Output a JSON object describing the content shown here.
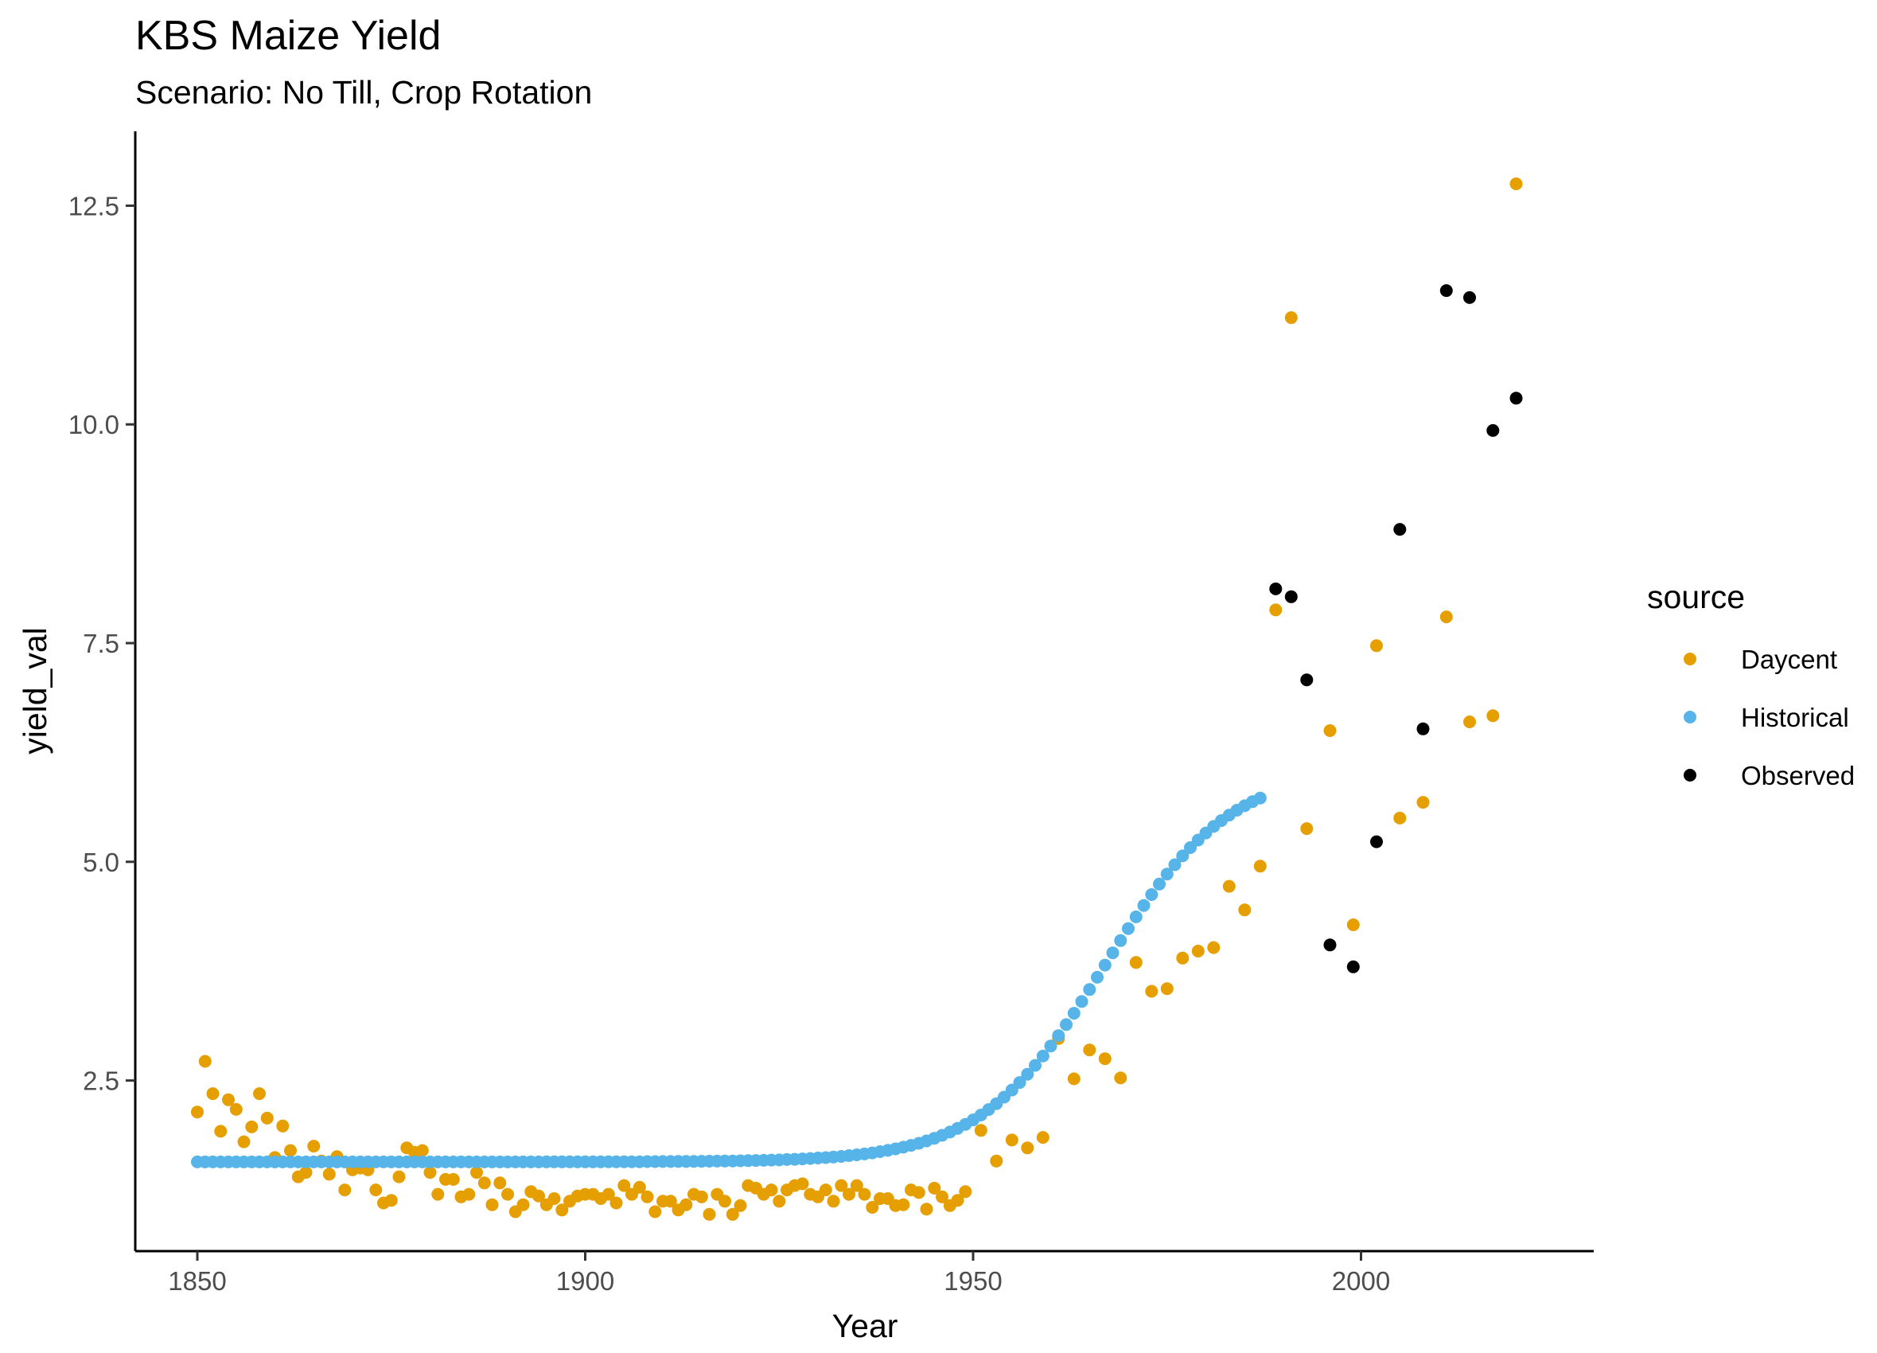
{
  "chart_data": {
    "type": "scatter",
    "title": "KBS Maize Yield",
    "subtitle": "Scenario: No Till, Crop Rotation",
    "xlabel": "Year",
    "ylabel": "yield_val",
    "xlim": [
      1842,
      2030
    ],
    "ylim": [
      0.55,
      13.35
    ],
    "x_ticks": [
      1850,
      1900,
      1950,
      2000
    ],
    "y_ticks": [
      2.5,
      5.0,
      7.5,
      10.0,
      12.5
    ],
    "grid": false,
    "legend": {
      "title": "source",
      "position": "right"
    },
    "series": [
      {
        "name": "Daycent",
        "color": "#E69F00",
        "points": [
          [
            1850,
            2.14
          ],
          [
            1851,
            2.72
          ],
          [
            1852,
            2.35
          ],
          [
            1853,
            1.92
          ],
          [
            1854,
            2.28
          ],
          [
            1855,
            2.17
          ],
          [
            1856,
            1.8
          ],
          [
            1857,
            1.97
          ],
          [
            1858,
            2.35
          ],
          [
            1859,
            2.07
          ],
          [
            1860,
            1.62
          ],
          [
            1861,
            1.98
          ],
          [
            1862,
            1.7
          ],
          [
            1863,
            1.4
          ],
          [
            1864,
            1.45
          ],
          [
            1865,
            1.75
          ],
          [
            1866,
            1.58
          ],
          [
            1867,
            1.43
          ],
          [
            1868,
            1.63
          ],
          [
            1869,
            1.25
          ],
          [
            1870,
            1.48
          ],
          [
            1871,
            1.5
          ],
          [
            1872,
            1.48
          ],
          [
            1873,
            1.25
          ],
          [
            1874,
            1.1
          ],
          [
            1875,
            1.13
          ],
          [
            1876,
            1.4
          ],
          [
            1877,
            1.73
          ],
          [
            1878,
            1.68
          ],
          [
            1879,
            1.7
          ],
          [
            1880,
            1.45
          ],
          [
            1881,
            1.2
          ],
          [
            1882,
            1.37
          ],
          [
            1883,
            1.37
          ],
          [
            1884,
            1.17
          ],
          [
            1885,
            1.2
          ],
          [
            1886,
            1.45
          ],
          [
            1887,
            1.33
          ],
          [
            1888,
            1.08
          ],
          [
            1889,
            1.33
          ],
          [
            1890,
            1.2
          ],
          [
            1891,
            1.0
          ],
          [
            1892,
            1.08
          ],
          [
            1893,
            1.23
          ],
          [
            1894,
            1.18
          ],
          [
            1895,
            1.08
          ],
          [
            1896,
            1.15
          ],
          [
            1897,
            1.02
          ],
          [
            1898,
            1.12
          ],
          [
            1899,
            1.18
          ],
          [
            1900,
            1.2
          ],
          [
            1901,
            1.2
          ],
          [
            1902,
            1.15
          ],
          [
            1903,
            1.2
          ],
          [
            1904,
            1.1
          ],
          [
            1905,
            1.3
          ],
          [
            1906,
            1.2
          ],
          [
            1907,
            1.28
          ],
          [
            1908,
            1.17
          ],
          [
            1909,
            1.0
          ],
          [
            1910,
            1.12
          ],
          [
            1911,
            1.12
          ],
          [
            1912,
            1.02
          ],
          [
            1913,
            1.08
          ],
          [
            1914,
            1.2
          ],
          [
            1915,
            1.17
          ],
          [
            1916,
            0.97
          ],
          [
            1917,
            1.2
          ],
          [
            1918,
            1.12
          ],
          [
            1919,
            0.97
          ],
          [
            1920,
            1.07
          ],
          [
            1921,
            1.3
          ],
          [
            1922,
            1.27
          ],
          [
            1923,
            1.2
          ],
          [
            1924,
            1.25
          ],
          [
            1925,
            1.12
          ],
          [
            1926,
            1.25
          ],
          [
            1927,
            1.3
          ],
          [
            1928,
            1.32
          ],
          [
            1929,
            1.2
          ],
          [
            1930,
            1.17
          ],
          [
            1931,
            1.25
          ],
          [
            1932,
            1.12
          ],
          [
            1933,
            1.3
          ],
          [
            1934,
            1.2
          ],
          [
            1935,
            1.3
          ],
          [
            1936,
            1.2
          ],
          [
            1937,
            1.05
          ],
          [
            1938,
            1.15
          ],
          [
            1939,
            1.15
          ],
          [
            1940,
            1.07
          ],
          [
            1941,
            1.08
          ],
          [
            1942,
            1.25
          ],
          [
            1943,
            1.22
          ],
          [
            1944,
            1.03
          ],
          [
            1945,
            1.27
          ],
          [
            1946,
            1.17
          ],
          [
            1947,
            1.07
          ],
          [
            1948,
            1.13
          ],
          [
            1949,
            1.23
          ],
          [
            1951,
            1.93
          ],
          [
            1953,
            1.58
          ],
          [
            1955,
            1.82
          ],
          [
            1957,
            1.73
          ],
          [
            1959,
            1.85
          ],
          [
            1961,
            2.98
          ],
          [
            1963,
            2.52
          ],
          [
            1965,
            2.85
          ],
          [
            1967,
            2.75
          ],
          [
            1969,
            2.53
          ],
          [
            1971,
            3.85
          ],
          [
            1973,
            3.52
          ],
          [
            1975,
            3.55
          ],
          [
            1977,
            3.9
          ],
          [
            1979,
            3.98
          ],
          [
            1981,
            4.02
          ],
          [
            1983,
            4.72
          ],
          [
            1985,
            4.45
          ],
          [
            1987,
            4.95
          ],
          [
            1989,
            7.88
          ],
          [
            1991,
            11.22
          ],
          [
            1993,
            5.38
          ],
          [
            1996,
            6.5
          ],
          [
            1999,
            4.28
          ],
          [
            2002,
            7.47
          ],
          [
            2005,
            5.5
          ],
          [
            2008,
            5.68
          ],
          [
            2011,
            7.8
          ],
          [
            2014,
            6.6
          ],
          [
            2017,
            6.67
          ],
          [
            2020,
            12.75
          ]
        ]
      },
      {
        "name": "Historical",
        "color": "#56B4E9",
        "curve": {
          "base": 1.57,
          "start": 1850,
          "end": 1987,
          "mid": 1967,
          "amplitude": 4.5,
          "scale": 8
        }
      },
      {
        "name": "Observed",
        "color": "#000000",
        "points": [
          [
            1989,
            8.12
          ],
          [
            1991,
            8.03
          ],
          [
            1993,
            7.08
          ],
          [
            1996,
            4.05
          ],
          [
            1999,
            3.8
          ],
          [
            2002,
            5.23
          ],
          [
            2005,
            8.8
          ],
          [
            2008,
            6.52
          ],
          [
            2011,
            11.53
          ],
          [
            2014,
            11.45
          ],
          [
            2017,
            9.93
          ],
          [
            2020,
            10.3
          ]
        ]
      }
    ]
  }
}
